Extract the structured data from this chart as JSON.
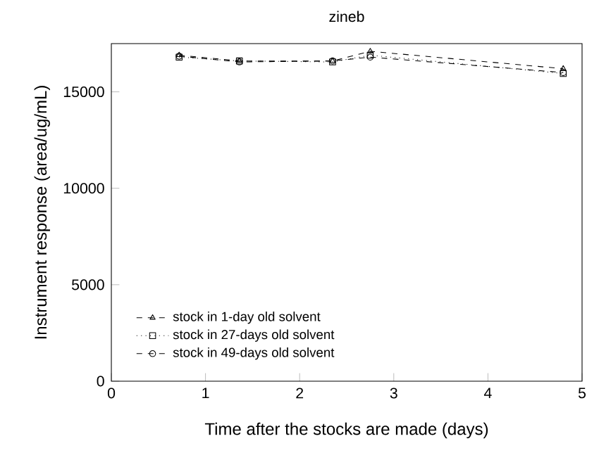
{
  "chart_data": {
    "type": "line",
    "title": "zineb",
    "xlabel": "Time after the stocks are made (days)",
    "ylabel": "Instrument response (area/ug/mL)",
    "xlim": [
      0,
      5
    ],
    "xticks": [
      0,
      1,
      2,
      3,
      4,
      5
    ],
    "ylim": [
      0,
      17500
    ],
    "yticks": [
      0,
      5000,
      10000,
      15000
    ],
    "legend": "bottom left",
    "grid": false,
    "series": [
      {
        "name": "stock in 1-day old solvent",
        "color": "#000000",
        "marker": "triangle",
        "line_style": "dashed",
        "x": [
          0.72,
          1.36,
          2.35,
          2.75,
          4.8
        ],
        "values": [
          16900,
          16600,
          16600,
          17100,
          16200
        ]
      },
      {
        "name": "stock in 27-days old solvent",
        "color": "#000000",
        "marker": "square",
        "line_style": "dotted",
        "x": [
          0.72,
          1.36,
          2.35,
          2.75,
          4.8
        ],
        "values": [
          16800,
          16600,
          16550,
          16900,
          15950
        ]
      },
      {
        "name": "stock in 49-days old solvent",
        "color": "#000000",
        "marker": "circle",
        "line_style": "dashed",
        "x": [
          0.72,
          1.36,
          2.35,
          2.75,
          4.8
        ],
        "values": [
          16850,
          16550,
          16600,
          16800,
          16000
        ]
      }
    ]
  }
}
